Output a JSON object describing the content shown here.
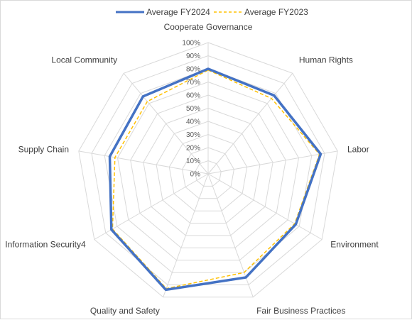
{
  "chart_data": {
    "type": "radar",
    "categories": [
      "Cooperate Governance",
      "Human Rights",
      "Labor",
      "Environment",
      "Fair Business Practices",
      "Quality and Safety",
      "Information Security4",
      "Supply Chain",
      "Local Community"
    ],
    "series": [
      {
        "name": "Average FY2024",
        "color": "#4472C4",
        "line_style": "solid",
        "values": [
          0.8,
          0.78,
          0.87,
          0.77,
          0.84,
          0.94,
          0.85,
          0.76,
          0.77
        ]
      },
      {
        "name": "Average FY2023",
        "color": "#FFC000",
        "line_style": "dashed",
        "values": [
          0.79,
          0.75,
          0.86,
          0.76,
          0.8,
          0.93,
          0.84,
          0.72,
          0.72
        ]
      }
    ],
    "r_axis": {
      "range": [
        0,
        1
      ],
      "ticks": [
        "0%",
        "10%",
        "20%",
        "30%",
        "40%",
        "50%",
        "60%",
        "70%",
        "80%",
        "90%",
        "100%"
      ]
    },
    "grid": true,
    "legend_position": "top"
  }
}
